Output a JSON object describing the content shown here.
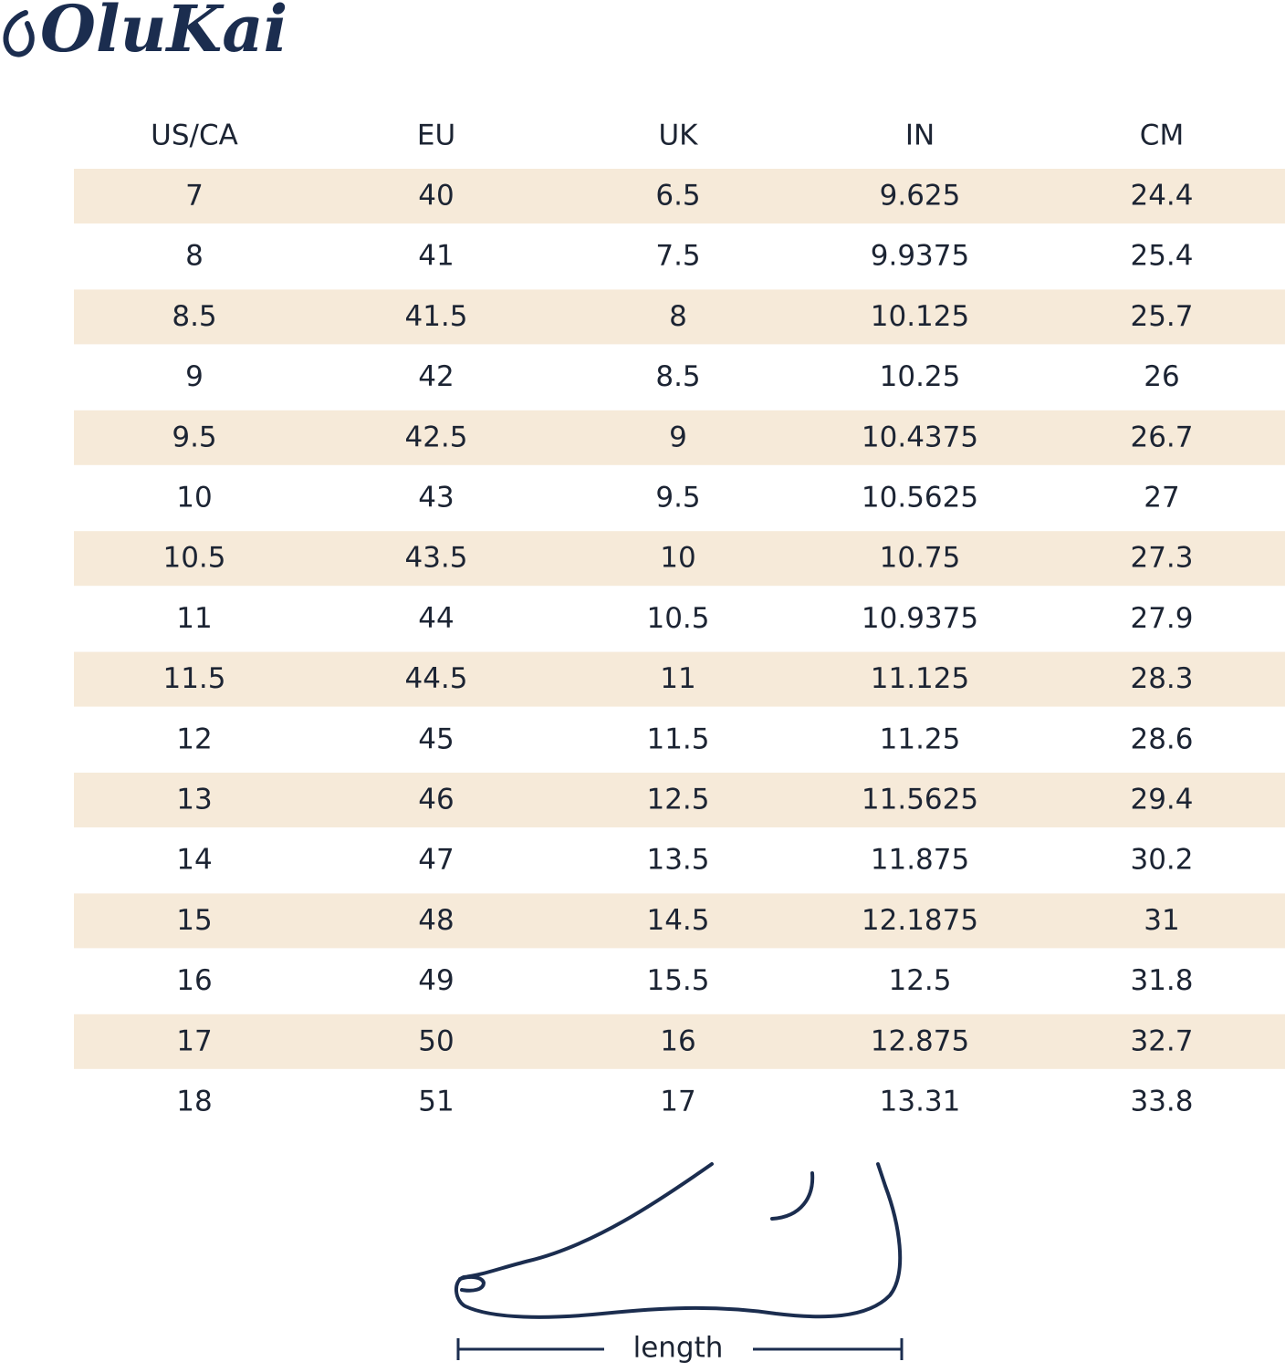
{
  "brand": "OluKai",
  "table": {
    "header": [
      "US/CA",
      "EU",
      "UK",
      "IN",
      "CM"
    ],
    "rows": [
      [
        "7",
        "40",
        "6.5",
        "9.625",
        "24.4"
      ],
      [
        "8",
        "41",
        "7.5",
        "9.9375",
        "25.4"
      ],
      [
        "8.5",
        "41.5",
        "8",
        "10.125",
        "25.7"
      ],
      [
        "9",
        "42",
        "8.5",
        "10.25",
        "26"
      ],
      [
        "9.5",
        "42.5",
        "9",
        "10.4375",
        "26.7"
      ],
      [
        "10",
        "43",
        "9.5",
        "10.5625",
        "27"
      ],
      [
        "10.5",
        "43.5",
        "10",
        "10.75",
        "27.3"
      ],
      [
        "11",
        "44",
        "10.5",
        "10.9375",
        "27.9"
      ],
      [
        "11.5",
        "44.5",
        "11",
        "11.125",
        "28.3"
      ],
      [
        "12",
        "45",
        "11.5",
        "11.25",
        "28.6"
      ],
      [
        "13",
        "46",
        "12.5",
        "11.5625",
        "29.4"
      ],
      [
        "14",
        "47",
        "13.5",
        "11.875",
        "30.2"
      ],
      [
        "15",
        "48",
        "14.5",
        "12.1875",
        "31"
      ],
      [
        "16",
        "49",
        "15.5",
        "12.5",
        "31.8"
      ],
      [
        "17",
        "50",
        "16",
        "12.875",
        "32.7"
      ],
      [
        "18",
        "51",
        "17",
        "13.31",
        "33.8"
      ]
    ]
  },
  "diagram": {
    "label": "length"
  }
}
